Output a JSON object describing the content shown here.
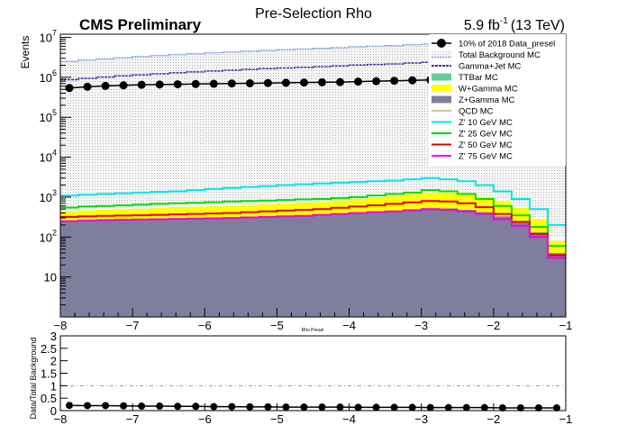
{
  "chart_data": [
    {
      "type": "area",
      "title": "Pre-Selection Rho",
      "experiment": "CMS Preliminary",
      "lumi_prefix": "5.9 fb",
      "lumi_exp": "-1",
      "lumi_suffix": "(13 TeV)",
      "ylabel": "Events",
      "xlabel": "Rho Presel",
      "xlim": [
        -8,
        -1
      ],
      "ylim": [
        1,
        12000000
      ],
      "yscale": "log",
      "xticks": [
        "−8",
        "−7",
        "−6",
        "−5",
        "−4",
        "−3",
        "−2",
        "−1"
      ],
      "yticks": [
        {
          "base": "10",
          "exp": "",
          "value": 10
        },
        {
          "base": "10",
          "exp": "2",
          "value": 100
        },
        {
          "base": "10",
          "exp": "3",
          "value": 1000
        },
        {
          "base": "10",
          "exp": "4",
          "value": 10000
        },
        {
          "base": "10",
          "exp": "5",
          "value": 100000
        },
        {
          "base": "10",
          "exp": "6",
          "value": 1000000
        },
        {
          "base": "10",
          "exp": "7",
          "value": 10000000
        }
      ],
      "legend_position": "top-right",
      "x": [
        -8.0,
        -7.75,
        -7.5,
        -7.25,
        -7.0,
        -6.75,
        -6.5,
        -6.25,
        -6.0,
        -5.75,
        -5.5,
        -5.25,
        -5.0,
        -4.75,
        -4.5,
        -4.25,
        -4.0,
        -3.75,
        -3.5,
        -3.25,
        -3.0,
        -2.75,
        -2.5,
        -2.25,
        -2.0,
        -1.75,
        -1.5,
        -1.25
      ],
      "series": [
        {
          "name": "Z+Gamma MC",
          "color": "#7f7f9d",
          "stack": true,
          "values": [
            240,
            250,
            260,
            265,
            270,
            280,
            285,
            290,
            295,
            300,
            310,
            320,
            330,
            340,
            350,
            370,
            390,
            420,
            450,
            480,
            510,
            520,
            480,
            420,
            330,
            230,
            130,
            40
          ]
        },
        {
          "name": "W+Gamma MC",
          "color": "#ffff00",
          "stack": true,
          "values": [
            200,
            210,
            220,
            230,
            240,
            260,
            270,
            280,
            290,
            300,
            320,
            340,
            360,
            380,
            400,
            450,
            500,
            560,
            620,
            700,
            780,
            760,
            700,
            600,
            450,
            300,
            150,
            40
          ]
        },
        {
          "name": "TTBar MC",
          "color": "#66cc99",
          "stack": true,
          "values": [
            3,
            3,
            3,
            3,
            3,
            3,
            3,
            3,
            4,
            4,
            4,
            4,
            4,
            4,
            4,
            5,
            5,
            5,
            5,
            5,
            6,
            6,
            6,
            5,
            4,
            3,
            2,
            1
          ]
        },
        {
          "name": "QCD MC",
          "color": "#c8c89a",
          "stack": true,
          "values": [
            50,
            50,
            50,
            50,
            50,
            50,
            50,
            50,
            50,
            50,
            50,
            50,
            50,
            50,
            50,
            50,
            50,
            50,
            50,
            50,
            50,
            50,
            50,
            50,
            50,
            40,
            30,
            20
          ]
        },
        {
          "name": "Gamma+Jet MC",
          "color": "#3333aa",
          "stack": true,
          "values": [
            2500000,
            2700000,
            2900000,
            3100000,
            3300000,
            3500000,
            3700000,
            3900000,
            4100000,
            4300000,
            4500000,
            4700000,
            4900000,
            5100000,
            5300000,
            5500000,
            5800000,
            6000000,
            6200000,
            6500000,
            6800000,
            7100000,
            7300000,
            7600000,
            7900000,
            8100000,
            8300000,
            8500000
          ]
        },
        {
          "name": "Total Background MC",
          "color": "#7799dd",
          "stack": false,
          "hatched": true,
          "values": [
            2500500,
            2700500,
            2900500,
            3100500,
            3300500,
            3500500,
            3700500,
            3900500,
            4100600,
            4300600,
            4500700,
            4700700,
            4900700,
            5100800,
            5300800,
            5500900,
            5800900,
            6001000,
            6201100,
            6501200,
            6801300,
            7101300,
            7301200,
            7601100,
            7900800,
            8100600,
            8300300,
            8500100
          ]
        },
        {
          "name": "Z' 10 GeV MC",
          "color": "#00e5e5",
          "stack": false,
          "values": [
            1100,
            1150,
            1200,
            1250,
            1300,
            1350,
            1400,
            1500,
            1600,
            1700,
            1800,
            1900,
            2000,
            2100,
            2200,
            2300,
            2400,
            2500,
            2600,
            2800,
            3000,
            2800,
            2500,
            2000,
            1400,
            900,
            500,
            200
          ]
        },
        {
          "name": "Z' 25 GeV MC",
          "color": "#00dd00",
          "stack": false,
          "values": [
            550,
            580,
            600,
            620,
            650,
            680,
            700,
            720,
            750,
            780,
            800,
            820,
            850,
            880,
            900,
            950,
            1000,
            1100,
            1200,
            1300,
            1500,
            1400,
            1200,
            900,
            600,
            350,
            180,
            60
          ]
        },
        {
          "name": "Z' 50 GeV MC",
          "color": "#dd0000",
          "stack": false,
          "values": [
            320,
            330,
            340,
            345,
            350,
            360,
            370,
            380,
            390,
            400,
            420,
            440,
            460,
            480,
            500,
            540,
            580,
            620,
            680,
            740,
            800,
            780,
            700,
            560,
            380,
            240,
            120,
            35
          ]
        },
        {
          "name": "Z' 75 GeV MC",
          "color": "#ee00ee",
          "stack": false,
          "values": [
            250,
            260,
            265,
            270,
            275,
            280,
            285,
            290,
            295,
            300,
            310,
            320,
            330,
            340,
            360,
            380,
            400,
            420,
            440,
            470,
            500,
            480,
            440,
            380,
            280,
            190,
            100,
            30
          ]
        },
        {
          "name": "10% of 2018 Data_presel",
          "color": "#000000",
          "stack": false,
          "markers": true,
          "values": [
            540000,
            580000,
            610000,
            630000,
            650000,
            660000,
            670000,
            680000,
            690000,
            700000,
            710000,
            720000,
            730000,
            740000,
            750000,
            760000,
            780000,
            800000,
            820000,
            840000,
            860000,
            870000,
            880000,
            890000,
            900000,
            910000,
            920000,
            930000
          ]
        }
      ]
    },
    {
      "type": "scatter",
      "ylabel": "Data/Total Background",
      "xlim": [
        -8,
        -1
      ],
      "ylim": [
        0,
        3
      ],
      "xticks": [
        "−8",
        "−7",
        "−6",
        "−5",
        "−4",
        "−3",
        "−2",
        "−1"
      ],
      "yticks": [
        "0",
        "0.5",
        "1",
        "1.5",
        "2",
        "2.5",
        "3"
      ],
      "reference_line": 1,
      "x": [
        -7.875,
        -7.625,
        -7.375,
        -7.125,
        -6.875,
        -6.625,
        -6.375,
        -6.125,
        -5.875,
        -5.625,
        -5.375,
        -5.125,
        -4.875,
        -4.625,
        -4.375,
        -4.125,
        -3.875,
        -3.625,
        -3.375,
        -3.125,
        -2.875,
        -2.625,
        -2.375,
        -2.125,
        -1.875,
        -1.625,
        -1.375,
        -1.125
      ],
      "values": [
        0.21,
        0.2,
        0.2,
        0.19,
        0.18,
        0.18,
        0.17,
        0.17,
        0.16,
        0.16,
        0.15,
        0.15,
        0.14,
        0.14,
        0.14,
        0.14,
        0.13,
        0.13,
        0.13,
        0.13,
        0.12,
        0.12,
        0.12,
        0.12,
        0.11,
        0.11,
        0.11,
        0.11
      ]
    }
  ],
  "legend": [
    {
      "label": "10% of 2018 Data_presel",
      "kind": "marker",
      "color": "#000000"
    },
    {
      "label": "Total Background MC",
      "kind": "hatch",
      "color": "#7799dd"
    },
    {
      "label": "Gamma+Jet MC",
      "kind": "hatch-dark",
      "color": "#3333aa"
    },
    {
      "label": "TTBar MC",
      "kind": "fill",
      "color": "#66cc99"
    },
    {
      "label": "W+Gamma MC",
      "kind": "fill",
      "color": "#ffff00"
    },
    {
      "label": "Z+Gamma MC",
      "kind": "fill",
      "color": "#7f7f9d"
    },
    {
      "label": "QCD MC",
      "kind": "line",
      "color": "#c8c89a"
    },
    {
      "label": "Z' 10 GeV MC",
      "kind": "line",
      "color": "#00e5e5"
    },
    {
      "label": "Z' 25 GeV MC",
      "kind": "line",
      "color": "#00dd00"
    },
    {
      "label": "Z' 50 GeV MC",
      "kind": "line",
      "color": "#dd0000"
    },
    {
      "label": "Z' 75 GeV MC",
      "kind": "line",
      "color": "#ee00ee"
    }
  ]
}
